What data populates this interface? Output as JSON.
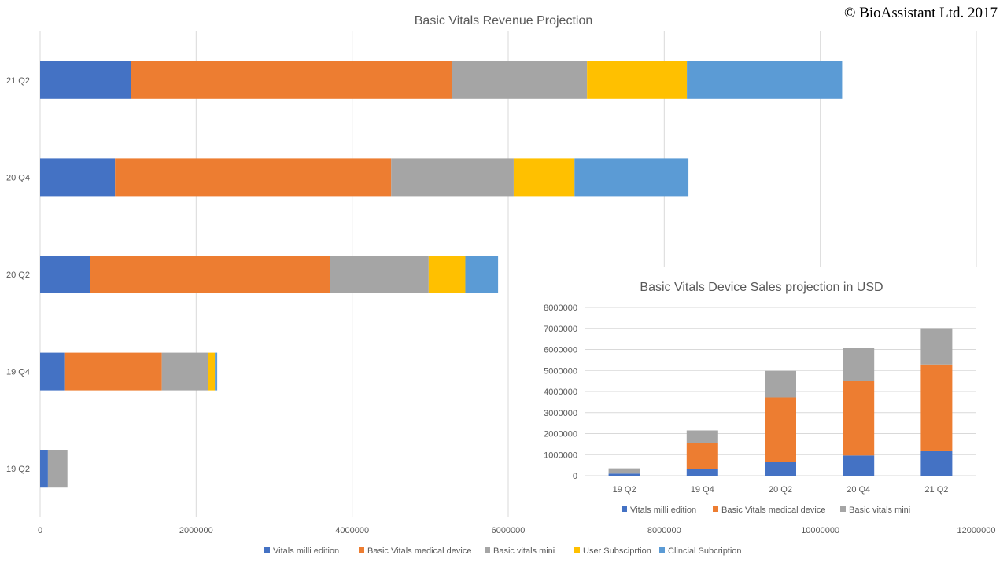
{
  "copyright": "© BioAssistant Ltd. 2017",
  "colors": {
    "vitals_milli": "#4472C4",
    "basic_vitals_medical": "#ED7D31",
    "basic_vitals_mini": "#A5A5A5",
    "user_subscription": "#FFC000",
    "clinical_subscription": "#5B9BD5",
    "grid": "#D9D9D9",
    "text": "#595959"
  },
  "chart_data": [
    {
      "type": "bar",
      "orientation": "horizontal",
      "stacked": true,
      "title": "Basic Vitals Revenue Projection",
      "categories": [
        "19  Q2",
        "19 Q4",
        "20 Q2",
        "20 Q4",
        "21 Q2"
      ],
      "xlim": [
        0,
        12000000
      ],
      "xticks": [
        "0",
        "2000000",
        "4000000",
        "6000000",
        "8000000",
        "10000000",
        "12000000"
      ],
      "grid": true,
      "legend_position": "bottom",
      "series": [
        {
          "name": "Vitals milli edition",
          "color": "#4472C4",
          "values": [
            100000,
            310000,
            640000,
            960000,
            1160000
          ]
        },
        {
          "name": "Basic Vitals medical device",
          "color": "#ED7D31",
          "values": [
            0,
            1250000,
            3080000,
            3540000,
            4120000
          ]
        },
        {
          "name": "Basic vitals mini",
          "color": "#A5A5A5",
          "values": [
            250000,
            590000,
            1260000,
            1570000,
            1730000
          ]
        },
        {
          "name": "User Subsciprtion",
          "color": "#FFC000",
          "values": [
            0,
            90000,
            470000,
            780000,
            1280000
          ]
        },
        {
          "name": "Clincial Subcription",
          "color": "#5B9BD5",
          "values": [
            0,
            30000,
            420000,
            1460000,
            1990000
          ]
        }
      ]
    },
    {
      "type": "bar",
      "orientation": "vertical",
      "stacked": true,
      "title": "Basic Vitals Device Sales projection in USD",
      "categories": [
        "19  Q2",
        "19 Q4",
        "20 Q2",
        "20 Q4",
        "21 Q2"
      ],
      "ylim": [
        0,
        8000000
      ],
      "yticks": [
        "0",
        "1000000",
        "2000000",
        "3000000",
        "4000000",
        "5000000",
        "6000000",
        "7000000",
        "8000000"
      ],
      "grid": true,
      "legend_position": "bottom",
      "series": [
        {
          "name": "Vitals milli edition",
          "color": "#4472C4",
          "values": [
            100000,
            310000,
            640000,
            960000,
            1160000
          ]
        },
        {
          "name": "Basic Vitals medical device",
          "color": "#ED7D31",
          "values": [
            0,
            1250000,
            3080000,
            3540000,
            4120000
          ]
        },
        {
          "name": "Basic vitals mini",
          "color": "#A5A5A5",
          "values": [
            250000,
            590000,
            1260000,
            1570000,
            1730000
          ]
        }
      ]
    }
  ]
}
